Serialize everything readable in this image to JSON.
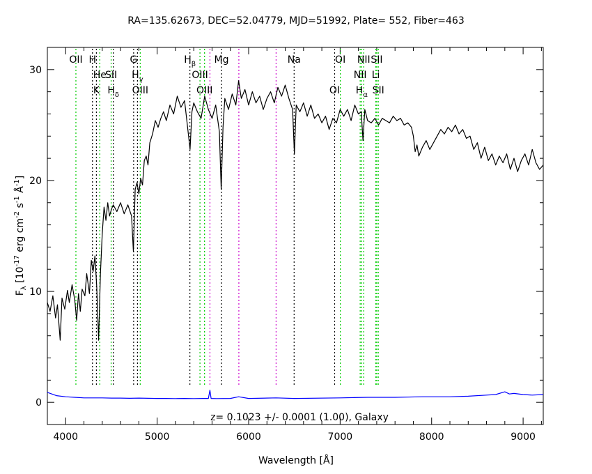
{
  "chart_data": {
    "type": "line",
    "title": "RA=135.62673, DEC=52.04779, MJD=51992, Plate=  552, Fiber=463",
    "annotation": "z= 0.1023 +/- 0.0001 (1.00), Galaxy",
    "xlabel": "Wavelength [Å]",
    "ylabel": {
      "prefix": "F",
      "prefix_sub": "λ",
      "part1": " [10",
      "exp1": "-17",
      "part2": " erg cm",
      "exp2": "-2",
      "part3": " s",
      "exp3": "-1",
      "part4": " Å",
      "exp4": "-1",
      "part5": "]"
    },
    "xlim": [
      3800,
      9220
    ],
    "ylim": [
      -2,
      32
    ],
    "x_ticks": [
      4000,
      5000,
      6000,
      7000,
      8000,
      9000
    ],
    "y_ticks": [
      0,
      10,
      20,
      30
    ],
    "x_tick_labels": [
      "4000",
      "5000",
      "6000",
      "7000",
      "8000",
      "9000"
    ],
    "y_tick_labels": [
      "0",
      "10",
      "20",
      "30"
    ],
    "colors": {
      "spectrum": "#000000",
      "error": "#0000ff",
      "emission": "#00cc00",
      "absorption": "#000000",
      "sky": "#cc00cc"
    },
    "series": [
      {
        "name": "",
        "color": "#000000",
        "x": [
          3800,
          3830,
          3860,
          3890,
          3910,
          3940,
          3960,
          3990,
          4020,
          4040,
          4070,
          4100,
          4120,
          4140,
          4160,
          4180,
          4210,
          4230,
          4260,
          4280,
          4300,
          4320,
          4340,
          4360,
          4380,
          4400,
          4420,
          4440,
          4460,
          4480,
          4500,
          4520,
          4560,
          4600,
          4640,
          4680,
          4720,
          4740,
          4760,
          4780,
          4800,
          4820,
          4840,
          4860,
          4880,
          4900,
          4920,
          4950,
          4980,
          5010,
          5040,
          5070,
          5100,
          5140,
          5180,
          5220,
          5260,
          5300,
          5330,
          5360,
          5380,
          5400,
          5440,
          5480,
          5520,
          5560,
          5600,
          5640,
          5680,
          5700,
          5720,
          5740,
          5780,
          5820,
          5860,
          5890,
          5920,
          5960,
          6000,
          6040,
          6080,
          6120,
          6160,
          6200,
          6240,
          6280,
          6320,
          6360,
          6400,
          6440,
          6480,
          6500,
          6520,
          6560,
          6600,
          6640,
          6680,
          6720,
          6760,
          6800,
          6840,
          6880,
          6920,
          6960,
          7000,
          7040,
          7080,
          7120,
          7160,
          7200,
          7230,
          7250,
          7270,
          7300,
          7340,
          7380,
          7420,
          7460,
          7500,
          7540,
          7580,
          7620,
          7660,
          7700,
          7740,
          7780,
          7800,
          7820,
          7840,
          7860,
          7900,
          7940,
          7980,
          8020,
          8060,
          8100,
          8140,
          8180,
          8220,
          8260,
          8300,
          8340,
          8380,
          8420,
          8460,
          8500,
          8540,
          8580,
          8620,
          8660,
          8700,
          8740,
          8780,
          8820,
          8860,
          8900,
          8940,
          8980,
          9020,
          9060,
          9100,
          9140,
          9180,
          9220
        ],
        "values": [
          9.0,
          8.2,
          9.6,
          7.6,
          8.8,
          5.6,
          9.4,
          8.4,
          10.1,
          9.0,
          10.6,
          9.2,
          7.4,
          9.8,
          8.2,
          10.2,
          9.6,
          11.6,
          9.8,
          12.8,
          11.8,
          13.2,
          10.4,
          5.6,
          11.6,
          15.2,
          17.6,
          16.4,
          18.0,
          16.8,
          17.4,
          17.8,
          17.2,
          18.0,
          17.0,
          17.8,
          16.8,
          13.6,
          19.2,
          19.8,
          18.8,
          20.2,
          19.6,
          21.8,
          22.2,
          21.4,
          23.4,
          24.2,
          25.4,
          24.8,
          25.6,
          26.2,
          25.4,
          26.8,
          26.0,
          27.6,
          26.6,
          27.2,
          25.0,
          22.8,
          26.2,
          27.0,
          26.2,
          25.6,
          27.6,
          26.4,
          25.6,
          26.8,
          24.4,
          19.2,
          24.8,
          27.4,
          26.4,
          27.8,
          26.8,
          29.0,
          27.4,
          28.2,
          26.8,
          28.0,
          27.0,
          27.6,
          26.4,
          27.4,
          28.0,
          27.0,
          28.4,
          27.6,
          28.6,
          27.4,
          26.4,
          22.4,
          26.8,
          26.2,
          27.0,
          25.8,
          26.8,
          25.6,
          26.0,
          25.2,
          25.8,
          24.6,
          25.6,
          25.2,
          26.4,
          25.8,
          26.4,
          25.4,
          26.8,
          26.0,
          26.2,
          23.6,
          26.4,
          25.4,
          25.2,
          25.6,
          25.0,
          25.6,
          25.4,
          25.2,
          25.8,
          25.4,
          25.6,
          25.0,
          25.2,
          24.8,
          24.0,
          22.6,
          23.2,
          22.2,
          23.0,
          23.6,
          22.8,
          23.4,
          24.0,
          24.6,
          24.2,
          24.8,
          24.4,
          25.0,
          24.2,
          24.6,
          23.8,
          24.0,
          22.8,
          23.4,
          22.0,
          23.0,
          21.8,
          22.4,
          21.4,
          22.2,
          21.6,
          22.4,
          21.0,
          22.0,
          20.8,
          21.8,
          22.4,
          21.4,
          22.8,
          21.6,
          21.0,
          21.4
        ],
        "line_style": "solid"
      },
      {
        "name": "",
        "color": "#0000ff",
        "x": [
          3800,
          3900,
          4000,
          4100,
          4200,
          4300,
          4400,
          4500,
          4600,
          4700,
          4800,
          4900,
          5000,
          5100,
          5200,
          5300,
          5400,
          5500,
          5560,
          5577,
          5590,
          5650,
          5800,
          5890,
          6000,
          6300,
          6500,
          7000,
          7300,
          7600,
          7900,
          8200,
          8400,
          8600,
          8700,
          8800,
          8850,
          8900,
          9000,
          9100,
          9220
        ],
        "values": [
          0.9,
          0.6,
          0.5,
          0.45,
          0.4,
          0.4,
          0.4,
          0.38,
          0.38,
          0.36,
          0.38,
          0.36,
          0.35,
          0.35,
          0.34,
          0.35,
          0.34,
          0.35,
          0.35,
          1.1,
          0.35,
          0.34,
          0.35,
          0.5,
          0.35,
          0.4,
          0.35,
          0.4,
          0.45,
          0.45,
          0.5,
          0.5,
          0.55,
          0.65,
          0.7,
          0.95,
          0.75,
          0.8,
          0.7,
          0.65,
          0.7
        ],
        "line_style": "solid"
      }
    ],
    "lines": [
      {
        "name": "OII",
        "x": 4112,
        "kind": "emission",
        "color": "#00cc00",
        "row": 0
      },
      {
        "name": "H",
        "x": 4293,
        "kind": "absorption",
        "color": "#000000",
        "row": 0
      },
      {
        "name": "He",
        "x": 4373,
        "kind": "emission",
        "color": "#00cc00",
        "row": 1
      },
      {
        "name": "K",
        "x": 4336,
        "kind": "absorption",
        "color": "#000000",
        "row": 2
      },
      {
        "name": "SII",
        "x": 4497,
        "kind": "emission",
        "color": "#00cc00",
        "row": 1
      },
      {
        "name": "Hδ",
        "x": 4521,
        "kind": "absorption",
        "color": "#000000",
        "row": 2
      },
      {
        "name": "G",
        "x": 4743,
        "kind": "absorption",
        "color": "#000000",
        "row": 0
      },
      {
        "name": "Hγ",
        "x": 4785,
        "kind": "absorption",
        "color": "#000000",
        "row": 1
      },
      {
        "name": "OIII",
        "x": 4815,
        "kind": "emission",
        "color": "#00cc00",
        "row": 2
      },
      {
        "name": "Hβ",
        "x": 5358,
        "kind": "absorption",
        "color": "#000000",
        "row": 0
      },
      {
        "name": "OIII",
        "x": 5468,
        "kind": "emission",
        "color": "#00cc00",
        "row": 1
      },
      {
        "name": "OIII",
        "x": 5518,
        "kind": "emission",
        "color": "#00cc00",
        "row": 2
      },
      {
        "name": "Mg",
        "x": 5703,
        "kind": "absorption",
        "color": "#000000",
        "row": 0
      },
      {
        "name": "Na",
        "x": 6497,
        "kind": "absorption",
        "color": "#000000",
        "row": 0
      },
      {
        "name": "OI",
        "x": 6940,
        "kind": "emission",
        "color": "#000000",
        "row": 2
      },
      {
        "name": "OI",
        "x": 7002,
        "kind": "emission",
        "color": "#00cc00",
        "row": 0
      },
      {
        "name": "NII",
        "x": 7219,
        "kind": "emission",
        "color": "#00cc00",
        "row": 1
      },
      {
        "name": "NII",
        "x": 7258,
        "kind": "emission",
        "color": "#00cc00",
        "row": 0
      },
      {
        "name": "Hα",
        "x": 7236,
        "kind": "emission",
        "color": "#00cc00",
        "row": 2
      },
      {
        "name": "SII",
        "x": 7400,
        "kind": "emission",
        "color": "#00cc00",
        "row": 0
      },
      {
        "name": "Li",
        "x": 7390,
        "kind": "absorption",
        "color": "#00cc00",
        "row": 1
      },
      {
        "name": "SII",
        "x": 7417,
        "kind": "emission",
        "color": "#00cc00",
        "row": 2
      },
      {
        "name": "",
        "x": 5577,
        "kind": "sky",
        "color": "#cc00cc",
        "row": -1
      },
      {
        "name": "",
        "x": 5893,
        "kind": "sky",
        "color": "#cc00cc",
        "row": -1
      },
      {
        "name": "",
        "x": 6300,
        "kind": "sky",
        "color": "#cc00cc",
        "row": -1
      }
    ]
  }
}
